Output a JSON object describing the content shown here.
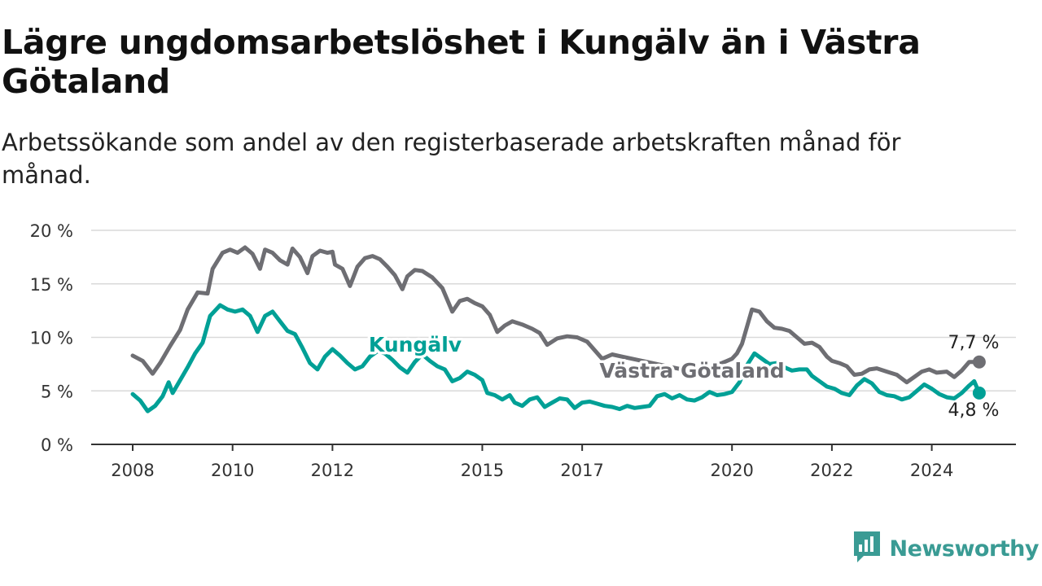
{
  "header": {
    "title": "Lägre ungdomsarbetslöshet i Kungälv än i Västra Götaland",
    "subtitle": "Arbetssökande som andel av den registerbaserade arbetskraften månad för månad."
  },
  "brand": {
    "name": "Newsworthy",
    "icon": "newsworthy-logo-icon",
    "color": "#3a9b94"
  },
  "chart_data": {
    "type": "line",
    "title": "Lägre ungdomsarbetslöshet i Kungälv än i Västra Götaland",
    "subtitle": "Arbetssökande som andel av den registerbaserade arbetskraften månad för månad.",
    "xlabel": "",
    "ylabel": "",
    "x_range": [
      2008,
      2025.5
    ],
    "ylim": [
      0,
      20
    ],
    "y_ticks": [
      {
        "value": 0,
        "label": "0 %"
      },
      {
        "value": 5,
        "label": "5 %"
      },
      {
        "value": 10,
        "label": "10 %"
      },
      {
        "value": 15,
        "label": "15 %"
      },
      {
        "value": 20,
        "label": "20 %"
      }
    ],
    "x_ticks": [
      {
        "value": 2008,
        "label": "2008"
      },
      {
        "value": 2010,
        "label": "2010"
      },
      {
        "value": 2012,
        "label": "2012"
      },
      {
        "value": 2015,
        "label": "2015"
      },
      {
        "value": 2017,
        "label": "2017"
      },
      {
        "value": 2020,
        "label": "2020"
      },
      {
        "value": 2022,
        "label": "2022"
      },
      {
        "value": 2024,
        "label": "2024"
      }
    ],
    "grid": true,
    "legend": "inline labels",
    "series": [
      {
        "name": "Västra Götaland",
        "color": "#6e6e73",
        "end_label": "7,7 %",
        "points": [
          [
            2008.0,
            8.3
          ],
          [
            2008.2,
            7.8
          ],
          [
            2008.4,
            6.6
          ],
          [
            2008.55,
            7.6
          ],
          [
            2008.75,
            9.2
          ],
          [
            2008.95,
            10.7
          ],
          [
            2009.1,
            12.6
          ],
          [
            2009.3,
            14.2
          ],
          [
            2009.5,
            14.1
          ],
          [
            2009.6,
            16.4
          ],
          [
            2009.8,
            17.9
          ],
          [
            2009.95,
            18.2
          ],
          [
            2010.1,
            17.9
          ],
          [
            2010.25,
            18.4
          ],
          [
            2010.4,
            17.8
          ],
          [
            2010.55,
            16.4
          ],
          [
            2010.65,
            18.2
          ],
          [
            2010.8,
            17.9
          ],
          [
            2010.95,
            17.2
          ],
          [
            2011.1,
            16.8
          ],
          [
            2011.2,
            18.3
          ],
          [
            2011.35,
            17.5
          ],
          [
            2011.5,
            16.0
          ],
          [
            2011.6,
            17.6
          ],
          [
            2011.75,
            18.1
          ],
          [
            2011.9,
            17.9
          ],
          [
            2012.0,
            18.0
          ],
          [
            2012.05,
            16.8
          ],
          [
            2012.2,
            16.4
          ],
          [
            2012.35,
            14.8
          ],
          [
            2012.5,
            16.6
          ],
          [
            2012.65,
            17.4
          ],
          [
            2012.8,
            17.6
          ],
          [
            2012.95,
            17.3
          ],
          [
            2013.1,
            16.6
          ],
          [
            2013.25,
            15.8
          ],
          [
            2013.4,
            14.5
          ],
          [
            2013.5,
            15.7
          ],
          [
            2013.65,
            16.3
          ],
          [
            2013.8,
            16.2
          ],
          [
            2014.0,
            15.6
          ],
          [
            2014.2,
            14.6
          ],
          [
            2014.4,
            12.4
          ],
          [
            2014.55,
            13.4
          ],
          [
            2014.7,
            13.6
          ],
          [
            2014.85,
            13.2
          ],
          [
            2015.0,
            12.9
          ],
          [
            2015.15,
            12.1
          ],
          [
            2015.3,
            10.5
          ],
          [
            2015.45,
            11.1
          ],
          [
            2015.6,
            11.5
          ],
          [
            2015.8,
            11.2
          ],
          [
            2016.0,
            10.8
          ],
          [
            2016.15,
            10.4
          ],
          [
            2016.3,
            9.3
          ],
          [
            2016.5,
            9.9
          ],
          [
            2016.7,
            10.1
          ],
          [
            2016.9,
            10.0
          ],
          [
            2017.1,
            9.6
          ],
          [
            2017.25,
            8.8
          ],
          [
            2017.4,
            8.0
          ],
          [
            2017.6,
            8.4
          ],
          [
            2017.8,
            8.2
          ],
          [
            2018.0,
            8.0
          ],
          [
            2018.2,
            7.8
          ],
          [
            2018.4,
            7.6
          ],
          [
            2018.6,
            7.4
          ],
          [
            2018.8,
            7.2
          ],
          [
            2019.0,
            7.0
          ],
          [
            2019.2,
            7.2
          ],
          [
            2019.4,
            7.0
          ],
          [
            2019.6,
            7.3
          ],
          [
            2019.8,
            7.6
          ],
          [
            2020.0,
            8.0
          ],
          [
            2020.1,
            8.5
          ],
          [
            2020.2,
            9.4
          ],
          [
            2020.3,
            11.0
          ],
          [
            2020.4,
            12.6
          ],
          [
            2020.55,
            12.4
          ],
          [
            2020.7,
            11.5
          ],
          [
            2020.85,
            10.9
          ],
          [
            2021.0,
            10.8
          ],
          [
            2021.15,
            10.6
          ],
          [
            2021.3,
            10.0
          ],
          [
            2021.45,
            9.4
          ],
          [
            2021.6,
            9.5
          ],
          [
            2021.75,
            9.1
          ],
          [
            2021.9,
            8.2
          ],
          [
            2022.0,
            7.8
          ],
          [
            2022.15,
            7.6
          ],
          [
            2022.3,
            7.3
          ],
          [
            2022.45,
            6.5
          ],
          [
            2022.6,
            6.6
          ],
          [
            2022.75,
            7.0
          ],
          [
            2022.9,
            7.1
          ],
          [
            2023.1,
            6.8
          ],
          [
            2023.3,
            6.5
          ],
          [
            2023.5,
            5.8
          ],
          [
            2023.65,
            6.3
          ],
          [
            2023.8,
            6.8
          ],
          [
            2023.95,
            7.0
          ],
          [
            2024.1,
            6.7
          ],
          [
            2024.3,
            6.8
          ],
          [
            2024.45,
            6.3
          ],
          [
            2024.6,
            6.9
          ],
          [
            2024.75,
            7.7
          ],
          [
            2024.95,
            7.7
          ]
        ]
      },
      {
        "name": "Kungälv",
        "color": "#00a096",
        "end_label": "4,8 %",
        "points": [
          [
            2008.0,
            4.7
          ],
          [
            2008.15,
            4.1
          ],
          [
            2008.3,
            3.1
          ],
          [
            2008.45,
            3.6
          ],
          [
            2008.6,
            4.5
          ],
          [
            2008.72,
            5.8
          ],
          [
            2008.8,
            4.8
          ],
          [
            2008.95,
            6.0
          ],
          [
            2009.1,
            7.2
          ],
          [
            2009.25,
            8.5
          ],
          [
            2009.4,
            9.5
          ],
          [
            2009.55,
            12.0
          ],
          [
            2009.75,
            13.0
          ],
          [
            2009.9,
            12.6
          ],
          [
            2010.05,
            12.4
          ],
          [
            2010.2,
            12.6
          ],
          [
            2010.35,
            12.0
          ],
          [
            2010.5,
            10.5
          ],
          [
            2010.65,
            12.0
          ],
          [
            2010.8,
            12.4
          ],
          [
            2010.95,
            11.5
          ],
          [
            2011.1,
            10.6
          ],
          [
            2011.25,
            10.3
          ],
          [
            2011.4,
            9.0
          ],
          [
            2011.55,
            7.6
          ],
          [
            2011.7,
            7.0
          ],
          [
            2011.85,
            8.2
          ],
          [
            2012.0,
            8.9
          ],
          [
            2012.15,
            8.3
          ],
          [
            2012.3,
            7.6
          ],
          [
            2012.45,
            7.0
          ],
          [
            2012.6,
            7.3
          ],
          [
            2012.75,
            8.2
          ],
          [
            2012.9,
            8.7
          ],
          [
            2013.05,
            8.5
          ],
          [
            2013.2,
            7.9
          ],
          [
            2013.35,
            7.2
          ],
          [
            2013.5,
            6.7
          ],
          [
            2013.65,
            7.7
          ],
          [
            2013.8,
            8.4
          ],
          [
            2013.95,
            7.8
          ],
          [
            2014.1,
            7.3
          ],
          [
            2014.25,
            7.0
          ],
          [
            2014.4,
            5.9
          ],
          [
            2014.55,
            6.2
          ],
          [
            2014.7,
            6.8
          ],
          [
            2014.85,
            6.5
          ],
          [
            2015.0,
            6.0
          ],
          [
            2015.1,
            4.8
          ],
          [
            2015.25,
            4.6
          ],
          [
            2015.4,
            4.2
          ],
          [
            2015.55,
            4.6
          ],
          [
            2015.65,
            3.9
          ],
          [
            2015.8,
            3.6
          ],
          [
            2015.95,
            4.2
          ],
          [
            2016.1,
            4.4
          ],
          [
            2016.25,
            3.5
          ],
          [
            2016.4,
            3.9
          ],
          [
            2016.55,
            4.3
          ],
          [
            2016.7,
            4.2
          ],
          [
            2016.85,
            3.4
          ],
          [
            2017.0,
            3.9
          ],
          [
            2017.15,
            4.0
          ],
          [
            2017.3,
            3.8
          ],
          [
            2017.45,
            3.6
          ],
          [
            2017.6,
            3.5
          ],
          [
            2017.75,
            3.3
          ],
          [
            2017.9,
            3.6
          ],
          [
            2018.05,
            3.4
          ],
          [
            2018.2,
            3.5
          ],
          [
            2018.35,
            3.6
          ],
          [
            2018.5,
            4.5
          ],
          [
            2018.65,
            4.7
          ],
          [
            2018.8,
            4.3
          ],
          [
            2018.95,
            4.6
          ],
          [
            2019.1,
            4.2
          ],
          [
            2019.25,
            4.1
          ],
          [
            2019.4,
            4.4
          ],
          [
            2019.55,
            4.9
          ],
          [
            2019.7,
            4.6
          ],
          [
            2019.85,
            4.7
          ],
          [
            2020.0,
            4.9
          ],
          [
            2020.15,
            5.8
          ],
          [
            2020.3,
            7.4
          ],
          [
            2020.45,
            8.5
          ],
          [
            2020.6,
            8.0
          ],
          [
            2020.75,
            7.5
          ],
          [
            2020.9,
            7.6
          ],
          [
            2021.05,
            7.2
          ],
          [
            2021.2,
            6.9
          ],
          [
            2021.35,
            7.0
          ],
          [
            2021.5,
            7.0
          ],
          [
            2021.6,
            6.4
          ],
          [
            2021.75,
            5.9
          ],
          [
            2021.9,
            5.4
          ],
          [
            2022.05,
            5.2
          ],
          [
            2022.2,
            4.8
          ],
          [
            2022.35,
            4.6
          ],
          [
            2022.5,
            5.5
          ],
          [
            2022.65,
            6.1
          ],
          [
            2022.8,
            5.7
          ],
          [
            2022.95,
            4.9
          ],
          [
            2023.1,
            4.6
          ],
          [
            2023.25,
            4.5
          ],
          [
            2023.4,
            4.2
          ],
          [
            2023.55,
            4.4
          ],
          [
            2023.7,
            5.0
          ],
          [
            2023.85,
            5.6
          ],
          [
            2024.0,
            5.2
          ],
          [
            2024.15,
            4.7
          ],
          [
            2024.3,
            4.4
          ],
          [
            2024.45,
            4.3
          ],
          [
            2024.6,
            4.8
          ],
          [
            2024.75,
            5.5
          ],
          [
            2024.85,
            5.9
          ],
          [
            2024.95,
            4.8
          ]
        ]
      }
    ]
  }
}
